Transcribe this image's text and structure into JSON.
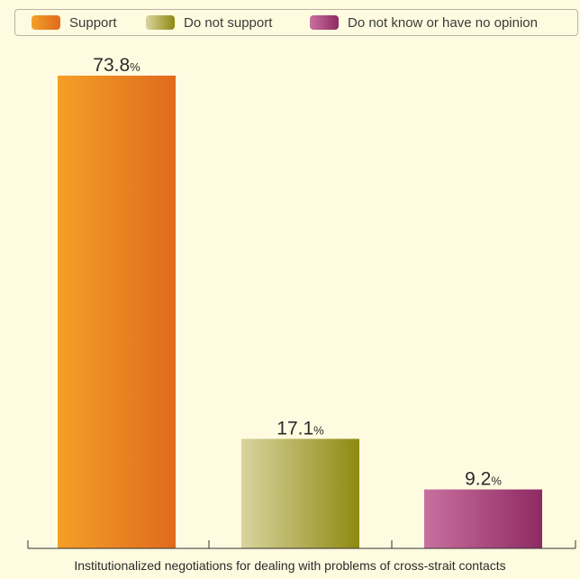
{
  "chart_data": {
    "type": "bar",
    "categories": [
      "Support",
      "Do not support",
      "Do not know or have no opinion"
    ],
    "series": [
      {
        "name": "Support",
        "value": 73.8,
        "label": "73.8",
        "unit": "%"
      },
      {
        "name": "Do not support",
        "value": 17.1,
        "label": "17.1",
        "unit": "%"
      },
      {
        "name": "Do not know or have no opinion",
        "value": 9.2,
        "label": "9.2",
        "unit": "%"
      }
    ],
    "xlabel": "Institutionalized negotiations for dealing with problems of cross-strait contacts",
    "ylim": [
      0,
      100
    ],
    "grid": false,
    "legend_position": "top",
    "colors": [
      {
        "from": "#f3a027",
        "to": "#e06a1e"
      },
      {
        "from": "#d9d4a0",
        "to": "#8f8a10"
      },
      {
        "from": "#c970a0",
        "to": "#8e2a62"
      }
    ]
  }
}
